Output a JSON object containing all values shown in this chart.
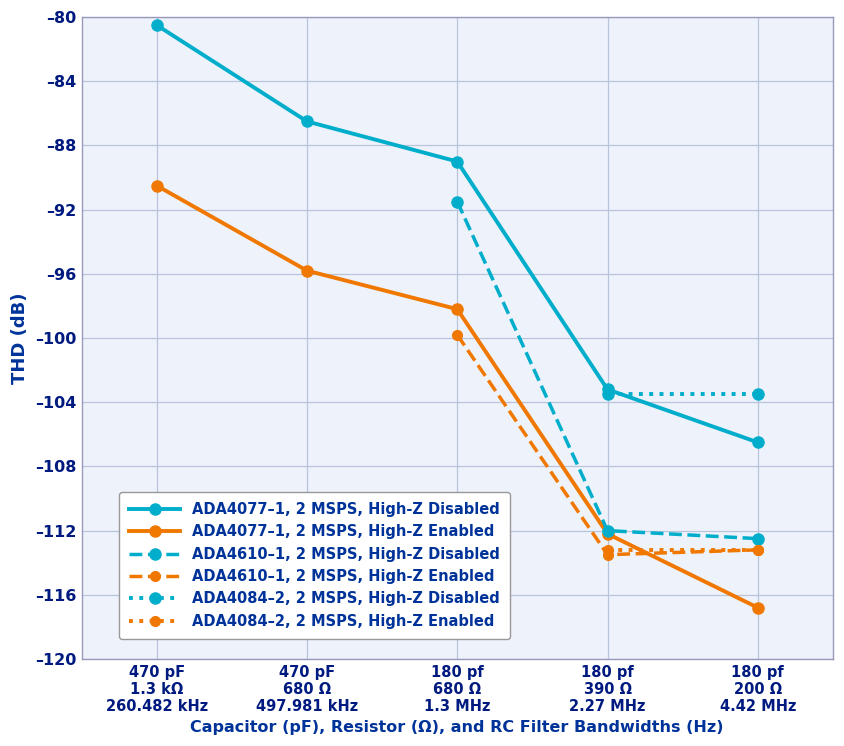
{
  "x_positions": [
    0,
    1,
    2,
    3,
    4
  ],
  "x_tick_labels": [
    "470 pF\n1.3 kΩ\n260.482 kHz",
    "470 pF\n680 Ω\n497.981 kHz",
    "180 pf\n680 Ω\n1.3 MHz",
    "180 pf\n390 Ω\n2.27 MHz",
    "180 pf\n200 Ω\n4.42 MHz"
  ],
  "series": [
    {
      "label": "ADA4077–1, 2 MSPS, High-Z Disabled",
      "color": "#00AECC",
      "linestyle": "solid",
      "linewidth": 2.8,
      "marker": "o",
      "markersize": 8,
      "x": [
        0,
        1,
        2,
        3,
        4
      ],
      "y": [
        -80.5,
        -86.5,
        -89.0,
        -103.2,
        -106.5
      ]
    },
    {
      "label": "ADA4077–1, 2 MSPS, High-Z Enabled",
      "color": "#F07800",
      "linestyle": "solid",
      "linewidth": 2.8,
      "marker": "o",
      "markersize": 8,
      "x": [
        0,
        1,
        2,
        3,
        4
      ],
      "y": [
        -90.5,
        -95.8,
        -98.2,
        -112.2,
        -116.8
      ]
    },
    {
      "label": "ADA4610–1, 2 MSPS, High-Z Disabled",
      "color": "#00AECC",
      "linestyle": "dashed",
      "linewidth": 2.5,
      "marker": "o",
      "markersize": 8,
      "x": [
        2,
        3,
        4
      ],
      "y": [
        -91.5,
        -112.0,
        -112.5
      ]
    },
    {
      "label": "ADA4610–1, 2 MSPS, High-Z Enabled",
      "color": "#F07800",
      "linestyle": "dashed",
      "linewidth": 2.5,
      "marker": "o",
      "markersize": 7,
      "x": [
        2,
        3,
        4
      ],
      "y": [
        -99.8,
        -113.5,
        -113.2
      ]
    },
    {
      "label": "ADA4084–2, 2 MSPS, High-Z Disabled",
      "color": "#00AECC",
      "linestyle": "dotted",
      "linewidth": 2.8,
      "marker": "o",
      "markersize": 8,
      "x": [
        3,
        4
      ],
      "y": [
        -103.5,
        -103.5
      ]
    },
    {
      "label": "ADA4084–2, 2 MSPS, High-Z Enabled",
      "color": "#F07800",
      "linestyle": "dotted",
      "linewidth": 2.8,
      "marker": "o",
      "markersize": 7,
      "x": [
        3,
        4
      ],
      "y": [
        -113.2,
        -113.2
      ]
    }
  ],
  "ylabel": "THD (dB)",
  "xlabel": "Capacitor (pF), Resistor (Ω), and RC Filter Bandwidths (Hz)",
  "ylim": [
    -120,
    -80
  ],
  "yticks": [
    -80,
    -84,
    -88,
    -92,
    -96,
    -100,
    -104,
    -108,
    -112,
    -116,
    -120
  ],
  "ytick_labels": [
    "–80",
    "–84",
    "–88",
    "–92",
    "–96",
    "–100",
    "–104",
    "–108",
    "–112",
    "–116",
    "–120"
  ],
  "background_color": "#FFFFFF",
  "plot_bg_color": "#EEF2FA",
  "grid_color": "#B8C4DC",
  "label_color": "#003399",
  "tick_color": "#001A80"
}
